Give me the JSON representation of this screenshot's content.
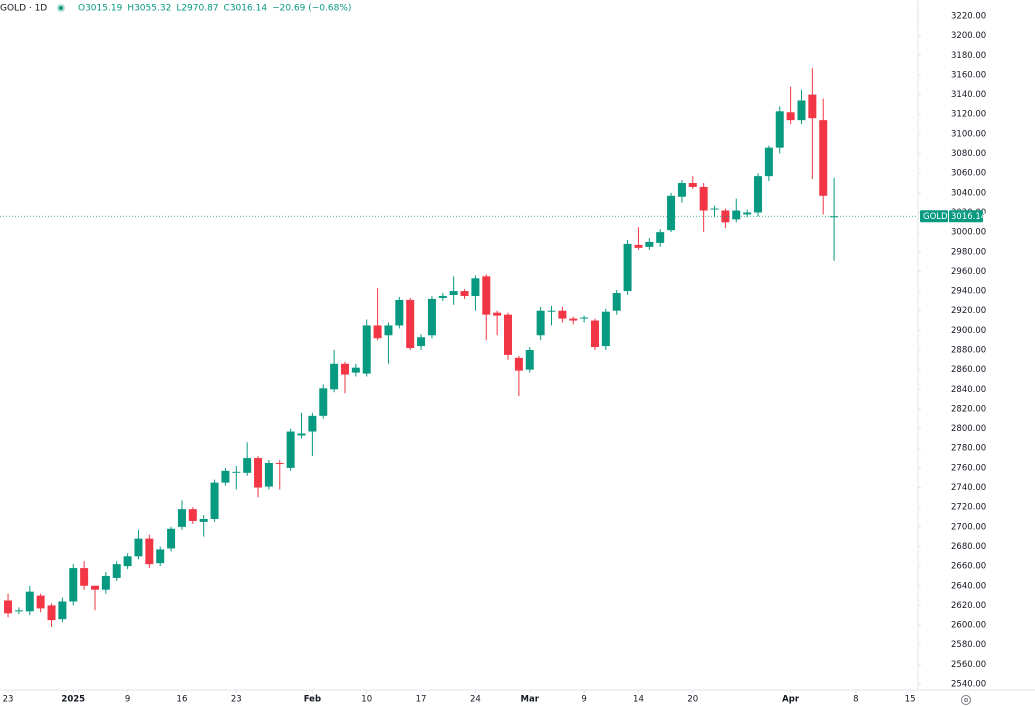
{
  "chart_data": {
    "type": "candlestick",
    "title": "GOLD · 1D",
    "symbol": "GOLD",
    "legend": [
      "O3015.19",
      "H3055.32",
      "L2970.87",
      "C3016.14",
      "−20.69 (−0.68%)"
    ],
    "up_color": "#089981",
    "down_color": "#f23645",
    "grid": false,
    "open": [
      2625,
      2614,
      2614,
      2630,
      2620,
      2606,
      2624,
      2658,
      2640,
      2636,
      2648,
      2660,
      2670,
      2688,
      2663,
      2678,
      2700,
      2718,
      2705,
      2708,
      2745,
      2755,
      2755,
      2770,
      2741,
      2765,
      2760,
      2793,
      2797,
      2813,
      2840,
      2866,
      2857,
      2856,
      2905,
      2895,
      2905,
      2931,
      2884,
      2895,
      2933,
      2936,
      2940,
      2935,
      2955,
      2918,
      2916,
      2872,
      2860,
      2895,
      2919,
      2920,
      2912,
      2912,
      2910,
      2884,
      2920,
      2940,
      2987,
      2985,
      2989,
      3002,
      3036,
      3050,
      3046,
      3023,
      3022,
      3013,
      3018,
      3020,
      3057,
      3086,
      3122,
      3114,
      3140,
      3114,
      3015.19
    ],
    "high": [
      2632,
      2618,
      2640,
      2632,
      2622,
      2628,
      2662,
      2665,
      2640,
      2654,
      2665,
      2673,
      2697,
      2692,
      2680,
      2700,
      2727,
      2720,
      2712,
      2748,
      2760,
      2762,
      2786,
      2772,
      2768,
      2768,
      2800,
      2816,
      2816,
      2845,
      2880,
      2868,
      2866,
      2911,
      2943,
      2908,
      2934,
      2933,
      2896,
      2935,
      2938,
      2955,
      2942,
      2956,
      2957,
      2920,
      2918,
      2874,
      2883,
      2924,
      2925,
      2924,
      2914,
      2915,
      2912,
      2922,
      2941,
      2992,
      3005,
      2994,
      3003,
      3040,
      3053,
      3057,
      3050,
      3027,
      3024,
      3034,
      3023,
      3060,
      3088,
      3128,
      3148,
      3145,
      3167,
      3136,
      3055.32
    ],
    "low": [
      2608,
      2611,
      2610,
      2613,
      2598,
      2603,
      2620,
      2636,
      2615,
      2632,
      2645,
      2657,
      2667,
      2658,
      2660,
      2675,
      2697,
      2703,
      2690,
      2705,
      2742,
      2738,
      2752,
      2730,
      2738,
      2738,
      2757,
      2790,
      2772,
      2810,
      2837,
      2836,
      2853,
      2853,
      2890,
      2866,
      2902,
      2880,
      2880,
      2892,
      2930,
      2926,
      2932,
      2920,
      2890,
      2895,
      2870,
      2833,
      2857,
      2890,
      2905,
      2908,
      2906,
      2908,
      2880,
      2880,
      2916,
      2936,
      2982,
      2982,
      2985,
      3000,
      3030,
      3044,
      3000,
      3015,
      3004,
      3010,
      3015,
      3016,
      3052,
      3080,
      3110,
      3110,
      3054,
      3018,
      2970.87
    ],
    "close": [
      2612,
      2615,
      2634,
      2617,
      2605,
      2624,
      2658,
      2640,
      2636,
      2650,
      2662,
      2670,
      2688,
      2662,
      2677,
      2698,
      2718,
      2706,
      2708,
      2745,
      2757,
      2756,
      2770,
      2740,
      2765,
      2764,
      2797,
      2795,
      2813,
      2841,
      2866,
      2855,
      2862,
      2905,
      2892,
      2905,
      2931,
      2882,
      2893,
      2932,
      2935,
      2940,
      2935,
      2953,
      2916,
      2915,
      2875,
      2859,
      2880,
      2920,
      2920,
      2912,
      2910,
      2913,
      2883,
      2919,
      2938,
      2988,
      2984,
      2990,
      3000,
      3037,
      3050,
      3046,
      3022,
      3024,
      3010,
      3022,
      3020,
      3057,
      3086,
      3123,
      3114,
      3134,
      3116,
      3037,
      3016.14
    ],
    "xlim": [
      -0.74,
      83.72
    ],
    "xticks": [
      {
        "value": 0,
        "label": "23"
      },
      {
        "value": 6,
        "label": "2025"
      },
      {
        "value": 11,
        "label": "9"
      },
      {
        "value": 16,
        "label": "16"
      },
      {
        "value": 21,
        "label": "23"
      },
      {
        "value": 28,
        "label": "Feb"
      },
      {
        "value": 33,
        "label": "10"
      },
      {
        "value": 38,
        "label": "17"
      },
      {
        "value": 43,
        "label": "24"
      },
      {
        "value": 48,
        "label": "Mar"
      },
      {
        "value": 53,
        "label": "9"
      },
      {
        "value": 58,
        "label": "14"
      },
      {
        "value": 63,
        "label": "20"
      },
      {
        "value": 72,
        "label": "Apr"
      },
      {
        "value": 78,
        "label": "8"
      },
      {
        "value": 83,
        "label": "15"
      }
    ],
    "ylim": [
      2533.9,
      3236.3
    ],
    "yticks": [
      {
        "value": 2540,
        "label": "2540.00"
      },
      {
        "value": 2560,
        "label": "2560.00"
      },
      {
        "value": 2580,
        "label": "2580.00"
      },
      {
        "value": 2600,
        "label": "2600.00"
      },
      {
        "value": 2620,
        "label": "2620.00"
      },
      {
        "value": 2640,
        "label": "2640.00"
      },
      {
        "value": 2660,
        "label": "2660.00"
      },
      {
        "value": 2680,
        "label": "2680.00"
      },
      {
        "value": 2700,
        "label": "2700.00"
      },
      {
        "value": 2720,
        "label": "2720.00"
      },
      {
        "value": 2740,
        "label": "2740.00"
      },
      {
        "value": 2760,
        "label": "2760.00"
      },
      {
        "value": 2780,
        "label": "2780.00"
      },
      {
        "value": 2800,
        "label": "2800.00"
      },
      {
        "value": 2820,
        "label": "2820.00"
      },
      {
        "value": 2840,
        "label": "2840.00"
      },
      {
        "value": 2860,
        "label": "2860.00"
      },
      {
        "value": 2880,
        "label": "2880.00"
      },
      {
        "value": 2900,
        "label": "2900.00"
      },
      {
        "value": 2920,
        "label": "2920.00"
      },
      {
        "value": 2940,
        "label": "2940.00"
      },
      {
        "value": 2960,
        "label": "2960.00"
      },
      {
        "value": 2980,
        "label": "2980.00"
      },
      {
        "value": 3000,
        "label": "3000.00"
      },
      {
        "value": 3020,
        "label": "3020.00"
      },
      {
        "value": 3040,
        "label": "3040.00"
      },
      {
        "value": 3060,
        "label": "3060.00"
      },
      {
        "value": 3080,
        "label": "3080.00"
      },
      {
        "value": 3100,
        "label": "3100.00"
      },
      {
        "value": 3120,
        "label": "3120.00"
      },
      {
        "value": 3140,
        "label": "3140.00"
      },
      {
        "value": 3160,
        "label": "3160.00"
      },
      {
        "value": 3180,
        "label": "3180.00"
      },
      {
        "value": 3200,
        "label": "3200.00"
      },
      {
        "value": 3220,
        "label": "3220.00"
      }
    ]
  }
}
